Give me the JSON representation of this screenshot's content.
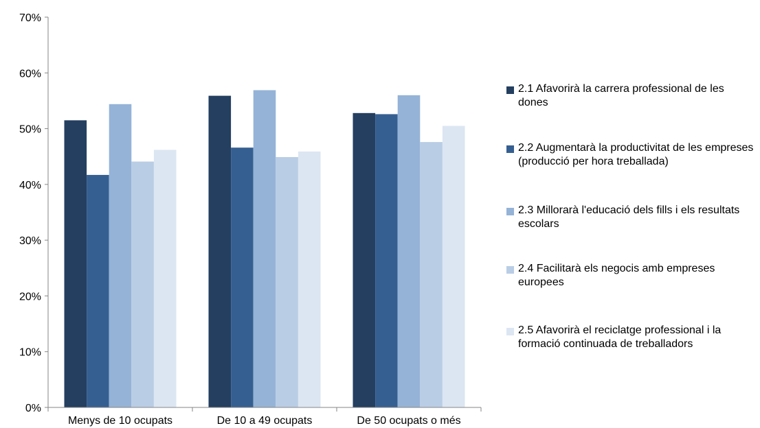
{
  "chart_data": {
    "type": "bar",
    "categories": [
      "Menys de 10 ocupats",
      "De 10 a 49 ocupats",
      "De 50 ocupats o més"
    ],
    "ylim": [
      0,
      70
    ],
    "yticks": [
      0,
      10,
      20,
      30,
      40,
      50,
      60,
      70
    ],
    "ytick_labels": [
      "0%",
      "10%",
      "20%",
      "30%",
      "40%",
      "50%",
      "60%",
      "70%"
    ],
    "legend_position": "right",
    "series": [
      {
        "name": "2.1 Afavorirà la carrera professional de les dones",
        "color": "#243f60",
        "values": [
          51.5,
          55.9,
          52.8
        ]
      },
      {
        "name": "2.2 Augmentarà la productivitat de les empreses (producció per hora treballada)",
        "color": "#365f91",
        "values": [
          41.7,
          46.6,
          52.6
        ]
      },
      {
        "name": "2.3 Millorarà l'educació dels fills i els resultats escolars",
        "color": "#95b3d7",
        "values": [
          54.4,
          56.9,
          56.0
        ]
      },
      {
        "name": "2.4 Facilitarà els negocis amb empreses europees",
        "color": "#b9cde5",
        "values": [
          44.1,
          44.9,
          47.6
        ]
      },
      {
        "name": "2.5 Afavorirà el reciclatge professional i la formació continuada de treballadors",
        "color": "#dce6f2",
        "values": [
          46.2,
          45.9,
          50.5
        ]
      }
    ]
  }
}
